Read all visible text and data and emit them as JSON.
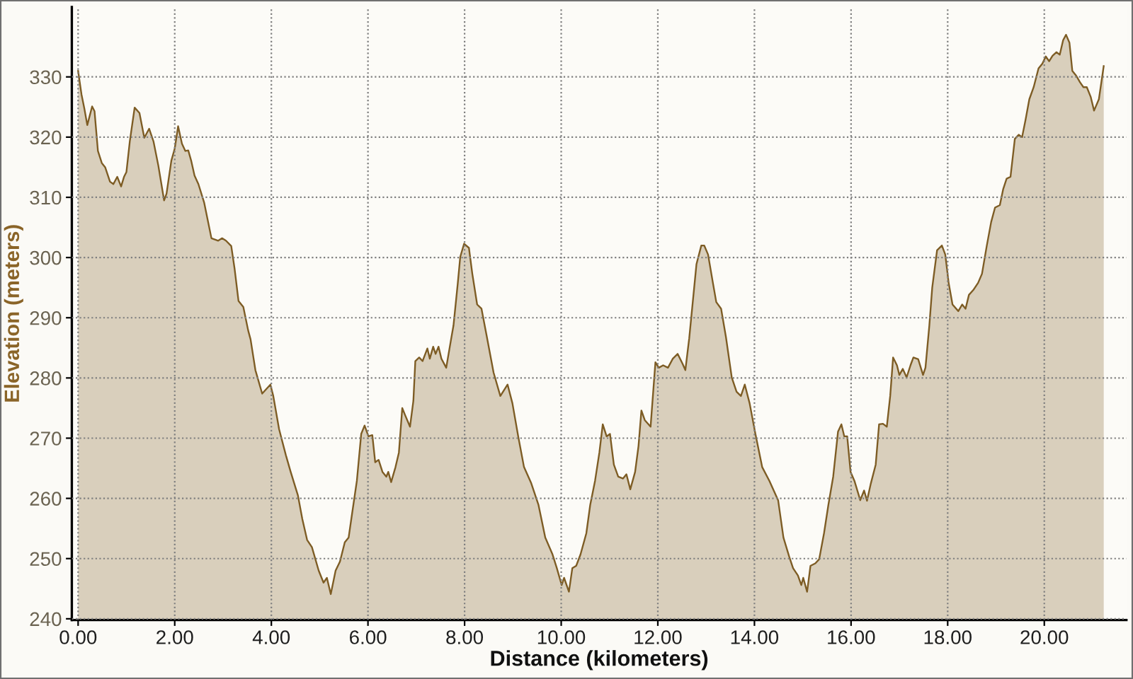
{
  "chart_data": {
    "type": "area",
    "xlabel": "Distance (kilometers)",
    "ylabel": "Elevation (meters)",
    "series": [
      {
        "color": "#7d5c24",
        "x": [
          0.0,
          0.07,
          0.13,
          0.19,
          0.29,
          0.34,
          0.41,
          0.49,
          0.56,
          0.66,
          0.73,
          0.81,
          0.89,
          0.95,
          1.0,
          1.07,
          1.17,
          1.27,
          1.37,
          1.47,
          1.56,
          1.66,
          1.78,
          1.83,
          1.93,
          2.0,
          2.07,
          2.15,
          2.22,
          2.28,
          2.34,
          2.41,
          2.49,
          2.61,
          2.76,
          2.9,
          2.98,
          3.06,
          3.17,
          3.24,
          3.32,
          3.42,
          3.52,
          3.57,
          3.67,
          3.81,
          3.98,
          4.04,
          4.16,
          4.3,
          4.4,
          4.55,
          4.64,
          4.74,
          4.84,
          4.98,
          5.08,
          5.15,
          5.23,
          5.33,
          5.42,
          5.52,
          5.6,
          5.67,
          5.77,
          5.86,
          5.93,
          6.01,
          6.09,
          6.15,
          6.22,
          6.3,
          6.38,
          6.42,
          6.48,
          6.57,
          6.64,
          6.71,
          6.77,
          6.87,
          6.94,
          6.98,
          7.06,
          7.13,
          7.23,
          7.28,
          7.35,
          7.4,
          7.46,
          7.52,
          7.62,
          7.72,
          7.77,
          7.86,
          7.91,
          7.99,
          8.09,
          8.16,
          8.26,
          8.35,
          8.45,
          8.6,
          8.74,
          8.89,
          8.99,
          9.11,
          9.23,
          9.38,
          9.53,
          9.67,
          9.82,
          9.91,
          10.01,
          10.06,
          10.16,
          10.23,
          10.31,
          10.4,
          10.52,
          10.6,
          10.7,
          10.79,
          10.86,
          10.94,
          11.01,
          11.09,
          11.18,
          11.28,
          11.35,
          11.43,
          11.53,
          11.6,
          11.66,
          11.73,
          11.85,
          11.95,
          12.02,
          12.11,
          12.21,
          12.31,
          12.41,
          12.51,
          12.57,
          12.65,
          12.8,
          12.9,
          12.96,
          13.04,
          13.14,
          13.21,
          13.31,
          13.41,
          13.53,
          13.63,
          13.72,
          13.8,
          13.9,
          14.02,
          14.16,
          14.31,
          14.49,
          14.6,
          14.72,
          14.8,
          14.9,
          14.97,
          15.01,
          15.09,
          15.16,
          15.26,
          15.34,
          15.44,
          15.53,
          15.63,
          15.73,
          15.8,
          15.86,
          15.92,
          15.99,
          16.07,
          16.19,
          16.27,
          16.33,
          16.41,
          16.51,
          16.58,
          16.66,
          16.74,
          16.81,
          16.87,
          16.95,
          17.0,
          17.07,
          17.15,
          17.23,
          17.29,
          17.39,
          17.49,
          17.54,
          17.62,
          17.68,
          17.78,
          17.88,
          17.95,
          18.02,
          18.1,
          18.22,
          18.3,
          18.37,
          18.44,
          18.53,
          18.63,
          18.71,
          18.81,
          18.9,
          18.98,
          19.08,
          19.15,
          19.22,
          19.3,
          19.39,
          19.47,
          19.54,
          19.61,
          19.69,
          19.78,
          19.88,
          19.96,
          20.03,
          20.1,
          20.17,
          20.25,
          20.32,
          20.39,
          20.45,
          20.52,
          20.58,
          20.66,
          20.74,
          20.81,
          20.88,
          20.96,
          21.03,
          21.13,
          21.23
        ],
        "values": [
          331.0,
          327.1,
          324.7,
          322.0,
          325.1,
          324.3,
          317.7,
          315.7,
          315.0,
          312.6,
          312.2,
          313.4,
          311.8,
          313.4,
          314.2,
          319.3,
          324.9,
          324.0,
          319.9,
          321.4,
          319.3,
          315.3,
          309.5,
          310.6,
          316.1,
          318.1,
          321.8,
          318.9,
          317.7,
          317.8,
          316.1,
          313.6,
          312.2,
          309.1,
          303.2,
          302.8,
          303.2,
          302.8,
          301.9,
          298.1,
          292.8,
          291.8,
          287.9,
          286.4,
          281.3,
          277.4,
          278.9,
          277.0,
          271.5,
          267.2,
          264.4,
          260.5,
          256.6,
          253.1,
          251.9,
          248.0,
          246.0,
          246.8,
          244.1,
          248.0,
          249.5,
          252.7,
          253.5,
          257.4,
          262.9,
          270.7,
          272.1,
          270.3,
          270.5,
          266.0,
          266.4,
          264.4,
          263.6,
          264.4,
          262.7,
          265.2,
          267.6,
          275.0,
          273.8,
          271.9,
          276.2,
          282.8,
          283.4,
          282.8,
          284.9,
          283.2,
          285.2,
          284.0,
          285.2,
          283.2,
          281.7,
          286.4,
          288.7,
          295.8,
          300.1,
          302.3,
          301.6,
          297.3,
          292.2,
          291.5,
          287.3,
          280.9,
          277.0,
          278.9,
          275.8,
          270.3,
          265.2,
          262.5,
          258.9,
          253.5,
          250.7,
          248.4,
          245.6,
          246.8,
          244.5,
          248.4,
          248.8,
          250.7,
          254.2,
          258.9,
          262.9,
          267.6,
          272.3,
          270.3,
          270.7,
          265.6,
          263.6,
          263.3,
          264.0,
          261.5,
          264.4,
          268.7,
          274.6,
          273.0,
          271.9,
          282.6,
          281.7,
          282.1,
          281.7,
          283.2,
          284.0,
          282.4,
          281.3,
          286.6,
          298.9,
          302.0,
          302.0,
          300.5,
          295.8,
          292.6,
          291.5,
          286.8,
          280.1,
          277.7,
          277.0,
          278.9,
          275.8,
          270.7,
          265.2,
          262.9,
          259.7,
          253.5,
          250.3,
          248.4,
          247.2,
          245.6,
          246.8,
          244.5,
          248.8,
          249.2,
          249.9,
          254.2,
          258.9,
          263.6,
          271.1,
          272.3,
          270.3,
          270.3,
          264.4,
          262.9,
          259.7,
          261.3,
          259.6,
          262.5,
          265.6,
          272.3,
          272.4,
          271.9,
          277.0,
          283.4,
          282.1,
          280.5,
          281.5,
          280.1,
          282.1,
          283.4,
          283.1,
          280.5,
          281.7,
          288.7,
          295.0,
          301.2,
          302.0,
          300.5,
          295.8,
          292.2,
          291.1,
          292.2,
          291.5,
          293.8,
          294.6,
          295.8,
          297.3,
          302.0,
          305.9,
          308.3,
          308.7,
          311.4,
          313.1,
          313.4,
          319.7,
          320.4,
          320.0,
          322.8,
          326.3,
          328.3,
          331.4,
          332.2,
          333.4,
          332.6,
          333.5,
          334.1,
          333.7,
          336.1,
          337.0,
          335.7,
          331.0,
          330.2,
          329.1,
          328.3,
          328.3,
          326.7,
          324.4,
          326.3,
          331.8
        ]
      }
    ],
    "xlim": [
      -0.13,
      21.7
    ],
    "ylim": [
      239.8,
      341.6
    ],
    "xticks": [
      {
        "value": 0,
        "label": "0.00"
      },
      {
        "value": 2,
        "label": "2.00"
      },
      {
        "value": 4,
        "label": "4.00"
      },
      {
        "value": 6,
        "label": "6.00"
      },
      {
        "value": 8,
        "label": "8.00"
      },
      {
        "value": 10,
        "label": "10.00"
      },
      {
        "value": 12,
        "label": "12.00"
      },
      {
        "value": 14,
        "label": "14.00"
      },
      {
        "value": 16,
        "label": "16.00"
      },
      {
        "value": 18,
        "label": "18.00"
      },
      {
        "value": 20,
        "label": "20.00"
      }
    ],
    "yticks": [
      240,
      250,
      260,
      270,
      280,
      290,
      300,
      310,
      320,
      330
    ],
    "grid": true
  }
}
